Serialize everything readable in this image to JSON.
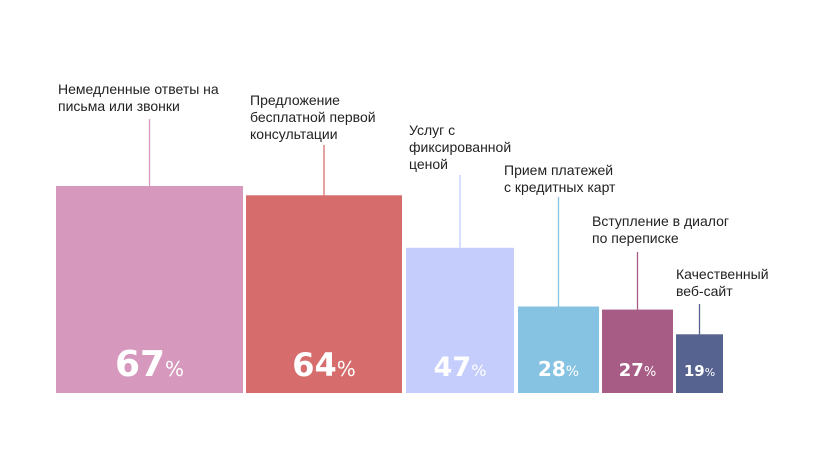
{
  "chart_data": {
    "type": "bar",
    "unit": "%",
    "categories": [
      "Немедленные ответы на\nписьма или звонки",
      "Предложение\nбесплатной первой\nконсультации",
      "Услуг с\nфиксированной\nценой",
      "Прием платежей\nс кредитных карт",
      "Вступление в диалог\nпо переписке",
      "Качественный\nвеб-сайт"
    ],
    "values": [
      67,
      64,
      47,
      28,
      27,
      19
    ],
    "colors": [
      "#d699bd",
      "#d76c6d",
      "#c4cdfc",
      "#86c3e3",
      "#a65c85",
      "#56628f"
    ],
    "leader_colors": [
      "#d699bd",
      "#d76c6d",
      "#c4cdfc",
      "#86c3e3",
      "#a65c85",
      "#56628f"
    ],
    "label_color": "#ffffff",
    "ylim": [
      0,
      70
    ],
    "title": "",
    "xlabel": "",
    "ylabel": "",
    "grid": false,
    "legend": "none"
  }
}
